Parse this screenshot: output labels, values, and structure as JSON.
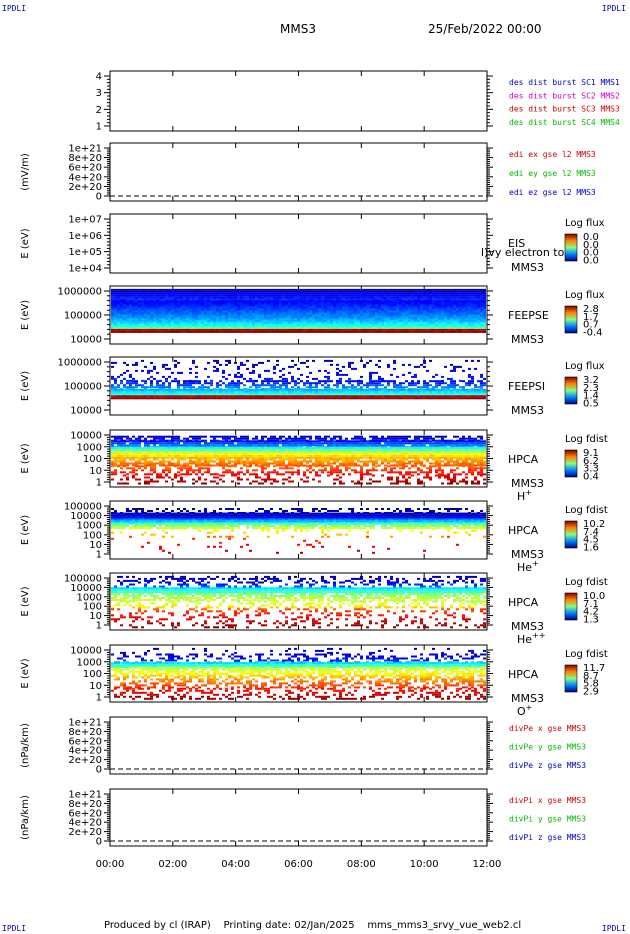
{
  "corners": {
    "tl": "IPDLI",
    "tr": "IPDLI",
    "bl": "IPDLI",
    "br": "IPDLI"
  },
  "header": {
    "title": "MMS3",
    "date": "25/Feb/2022 00:00"
  },
  "footer": {
    "produced": "Produced by cl (IRAP)",
    "printing": "Printing date: 02/Jan/2025",
    "file": "mms_mms3_srvy_vue_web2.cl"
  },
  "time_axis": [
    "00:00",
    "02:00",
    "04:00",
    "06:00",
    "08:00",
    "10:00",
    "12:00"
  ],
  "chart_data": [
    {
      "type": "line",
      "id": "p1",
      "yticks": [
        "4",
        "3",
        "2",
        "1"
      ],
      "ylabel": "",
      "legend": [
        {
          "text": "des dist burst SC1 MMS1",
          "color": "#0000cc"
        },
        {
          "text": "des dist burst SC2 MMS2",
          "color": "#cc00cc"
        },
        {
          "text": "des dist burst SC3 MMS3",
          "color": "#cc0000"
        },
        {
          "text": "des dist burst SC4 MMS4",
          "color": "#00bb00"
        }
      ]
    },
    {
      "type": "line",
      "id": "p2",
      "yticks": [
        "1e+21",
        "8e+20",
        "6e+20",
        "4e+20",
        "2e+20",
        "0"
      ],
      "ylabel": "(mV/m)",
      "legend": [
        {
          "text": "edi ex gse l2 MMS3",
          "color": "#cc0000"
        },
        {
          "text": "edi ey gse l2 MMS3",
          "color": "#00bb00"
        },
        {
          "text": "edi ez gse l2 MMS3",
          "color": "#0000cc"
        }
      ]
    },
    {
      "type": "heatmap",
      "id": "p3",
      "yticks": [
        "1e+07",
        "1e+06",
        "1e+05",
        "1e+04"
      ],
      "ylabel": "E (eV)",
      "labels": [
        "EIS",
        "MMS3"
      ],
      "overlay": "l)vy electron to",
      "cbtitle": "Log flux",
      "cbvals": [
        "0.0",
        "0.0",
        "0.0",
        "0.0"
      ]
    },
    {
      "type": "heatmap",
      "id": "p4",
      "yticks": [
        "1000000",
        "100000",
        "10000"
      ],
      "ylabel": "E (eV)",
      "labels": [
        "FEEPSE",
        "MMS3"
      ],
      "cbtitle": "Log flux",
      "cbvals": [
        "2.8",
        "1.7",
        "0.7",
        "-0.4"
      ]
    },
    {
      "type": "heatmap",
      "id": "p5",
      "yticks": [
        "1000000",
        "100000",
        "10000"
      ],
      "ylabel": "E (eV)",
      "labels": [
        "FEEPSI",
        "MMS3"
      ],
      "cbtitle": "Log flux",
      "cbvals": [
        "3.2",
        "2.3",
        "1.4",
        "0.5"
      ]
    },
    {
      "type": "heatmap",
      "id": "p6",
      "yticks": [
        "10000",
        "1000",
        "100",
        "10",
        "1"
      ],
      "ylabel": "E (eV)",
      "labels": [
        "HPCA",
        "MMS3"
      ],
      "species": "H",
      "sup": "+",
      "cbtitle": "Log fdist",
      "cbvals": [
        "9.1",
        "6.2",
        "3.3",
        "0.4"
      ]
    },
    {
      "type": "heatmap",
      "id": "p7",
      "yticks": [
        "100000",
        "10000",
        "1000",
        "100",
        "10",
        "1"
      ],
      "ylabel": "E (eV)",
      "labels": [
        "HPCA",
        "MMS3"
      ],
      "species": "He",
      "sup": "+",
      "cbtitle": "Log fdist",
      "cbvals": [
        "10.2",
        "7.4",
        "4.5",
        "1.6"
      ]
    },
    {
      "type": "heatmap",
      "id": "p8",
      "yticks": [
        "100000",
        "10000",
        "1000",
        "100",
        "10",
        "1"
      ],
      "ylabel": "E (eV)",
      "labels": [
        "HPCA",
        "MMS3"
      ],
      "species": "He",
      "sup": "++",
      "cbtitle": "Log fdist",
      "cbvals": [
        "10.0",
        "7.1",
        "4.2",
        "1.3"
      ]
    },
    {
      "type": "heatmap",
      "id": "p9",
      "yticks": [
        "10000",
        "1000",
        "100",
        "10",
        "1"
      ],
      "ylabel": "E (eV)",
      "labels": [
        "HPCA",
        "MMS3"
      ],
      "species": "O",
      "sup": "+",
      "cbtitle": "Log fdist",
      "cbvals": [
        "11.7",
        "8.7",
        "5.8",
        "2.9"
      ]
    },
    {
      "type": "line",
      "id": "p10",
      "yticks": [
        "1e+21",
        "8e+20",
        "6e+20",
        "4e+20",
        "2e+20",
        "0"
      ],
      "ylabel": "(nPa/km)",
      "legend": [
        {
          "text": "divPe x gse MMS3",
          "color": "#cc0000"
        },
        {
          "text": "divPe y gse MMS3",
          "color": "#00bb00"
        },
        {
          "text": "divPe z gse MMS3",
          "color": "#0000cc"
        }
      ]
    },
    {
      "type": "line",
      "id": "p11",
      "yticks": [
        "1e+21",
        "8e+20",
        "6e+20",
        "4e+20",
        "2e+20",
        "0"
      ],
      "ylabel": "(nPa/km)",
      "legend": [
        {
          "text": "divPi x gse MMS3",
          "color": "#cc0000"
        },
        {
          "text": "divPi y gse MMS3",
          "color": "#00bb00"
        },
        {
          "text": "divPi z gse MMS3",
          "color": "#0000cc"
        }
      ]
    }
  ]
}
